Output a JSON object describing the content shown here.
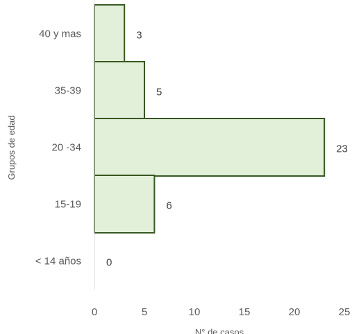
{
  "chart_data": {
    "type": "bar",
    "orientation": "horizontal",
    "categories": [
      "40 y mas",
      "35-39",
      "20 -34",
      "15-19",
      "< 14 años"
    ],
    "values": [
      3,
      5,
      23,
      6,
      0
    ],
    "title": "",
    "xlabel": "N° de casos",
    "ylabel": "Grupos de edad",
    "xlim": [
      0,
      25
    ],
    "xticks": [
      "0",
      "5",
      "10",
      "15",
      "20",
      "25"
    ],
    "grid": false,
    "legend": "none",
    "bar_fill": "#e2f0d9",
    "bar_stroke": "#385723"
  }
}
